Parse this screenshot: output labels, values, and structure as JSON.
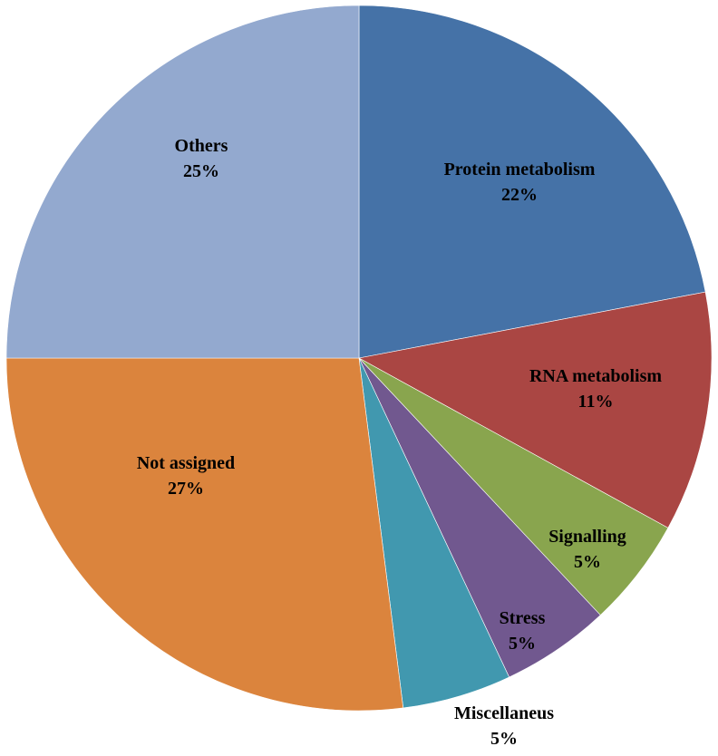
{
  "chart_data": {
    "type": "pie",
    "title": "",
    "slices": [
      {
        "label": "Protein metabolism",
        "value": 22,
        "value_label": "22%",
        "color": "#4572A7"
      },
      {
        "label": "RNA metabolism",
        "value": 11,
        "value_label": "11%",
        "color": "#AA4643"
      },
      {
        "label": "Signalling",
        "value": 5,
        "value_label": "5%",
        "color": "#89A54E"
      },
      {
        "label": "Stress",
        "value": 5,
        "value_label": "5%",
        "color": "#71588F"
      },
      {
        "label": "Miscellaneus",
        "value": 5,
        "value_label": "5%",
        "color": "#4198AF"
      },
      {
        "label": "Not assigned",
        "value": 27,
        "value_label": "27%",
        "color": "#DB843D"
      },
      {
        "label": "Others",
        "value": 25,
        "value_label": "25%",
        "color": "#93A9CF"
      }
    ],
    "legend": "none",
    "start_angle": "12 o'clock",
    "direction": "clockwise"
  }
}
